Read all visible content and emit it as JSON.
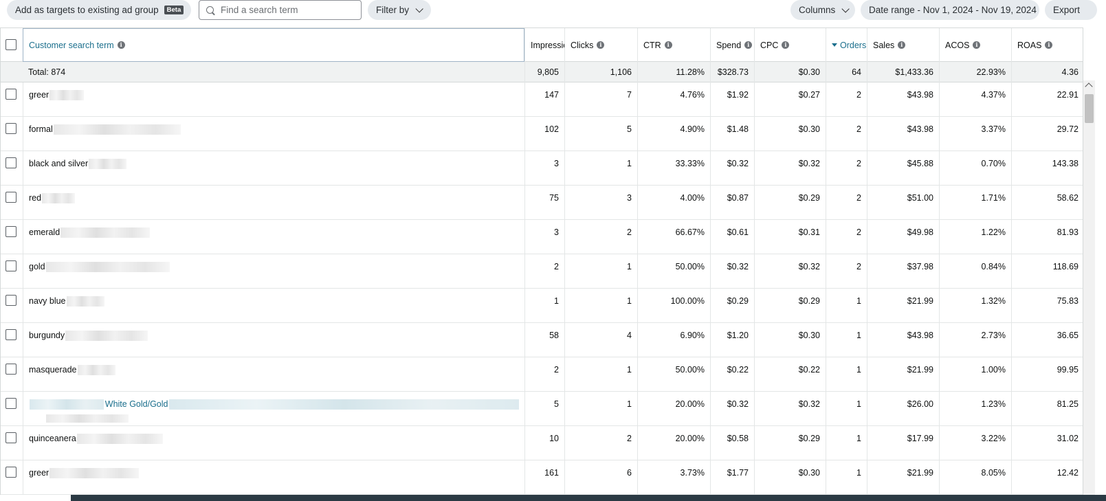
{
  "toolbar": {
    "add_targets_label": "Add as targets to existing ad group",
    "beta_badge": "Beta",
    "search_placeholder": "Find a search term",
    "filter_label": "Filter by",
    "columns_label": "Columns",
    "date_range_label": "Date range - Nov 1, 2024 - Nov 19, 2024",
    "export_label": "Export"
  },
  "columns": {
    "term": "Customer search term",
    "impressions": "Impressic",
    "clicks": "Clicks",
    "ctr": "CTR",
    "spend": "Spend",
    "cpc": "CPC",
    "orders": "Orders",
    "sales": "Sales",
    "acos": "ACOS",
    "roas": "ROAS"
  },
  "totals": {
    "label": "Total: 874",
    "impressions": "9,805",
    "clicks": "1,106",
    "ctr": "11.28%",
    "spend": "$328.73",
    "cpc": "$0.30",
    "orders": "64",
    "sales": "$1,433.36",
    "acos": "22.93%",
    "roas": "4.36"
  },
  "rows": [
    {
      "term": "greer",
      "impressions": "147",
      "clicks": "7",
      "ctr": "4.76%",
      "spend": "$1.92",
      "cpc": "$0.27",
      "orders": "2",
      "sales": "$43.98",
      "acos": "4.37%",
      "roas": "22.91"
    },
    {
      "term": "formal",
      "impressions": "102",
      "clicks": "5",
      "ctr": "4.90%",
      "spend": "$1.48",
      "cpc": "$0.30",
      "orders": "2",
      "sales": "$43.98",
      "acos": "3.37%",
      "roas": "29.72"
    },
    {
      "term": "black and silver",
      "impressions": "3",
      "clicks": "1",
      "ctr": "33.33%",
      "spend": "$0.32",
      "cpc": "$0.32",
      "orders": "2",
      "sales": "$45.88",
      "acos": "0.70%",
      "roas": "143.38"
    },
    {
      "term": "red",
      "impressions": "75",
      "clicks": "3",
      "ctr": "4.00%",
      "spend": "$0.87",
      "cpc": "$0.29",
      "orders": "2",
      "sales": "$51.00",
      "acos": "1.71%",
      "roas": "58.62"
    },
    {
      "term": "emerald",
      "impressions": "3",
      "clicks": "2",
      "ctr": "66.67%",
      "spend": "$0.61",
      "cpc": "$0.31",
      "orders": "2",
      "sales": "$49.98",
      "acos": "1.22%",
      "roas": "81.93"
    },
    {
      "term": "gold",
      "impressions": "2",
      "clicks": "1",
      "ctr": "50.00%",
      "spend": "$0.32",
      "cpc": "$0.32",
      "orders": "2",
      "sales": "$37.98",
      "acos": "0.84%",
      "roas": "118.69"
    },
    {
      "term": "navy blue",
      "impressions": "1",
      "clicks": "1",
      "ctr": "100.00%",
      "spend": "$0.29",
      "cpc": "$0.29",
      "orders": "1",
      "sales": "$21.99",
      "acos": "1.32%",
      "roas": "75.83"
    },
    {
      "term": "burgundy",
      "impressions": "58",
      "clicks": "4",
      "ctr": "6.90%",
      "spend": "$1.20",
      "cpc": "$0.30",
      "orders": "1",
      "sales": "$43.98",
      "acos": "2.73%",
      "roas": "36.65"
    },
    {
      "term": "masquerade",
      "impressions": "2",
      "clicks": "1",
      "ctr": "50.00%",
      "spend": "$0.22",
      "cpc": "$0.22",
      "orders": "1",
      "sales": "$21.99",
      "acos": "1.00%",
      "roas": "99.95"
    },
    {
      "term": "White Gold/Gold",
      "impressions": "5",
      "clicks": "1",
      "ctr": "20.00%",
      "spend": "$0.32",
      "cpc": "$0.32",
      "orders": "1",
      "sales": "$26.00",
      "acos": "1.23%",
      "roas": "81.25"
    },
    {
      "term": "quinceanera",
      "impressions": "10",
      "clicks": "2",
      "ctr": "20.00%",
      "spend": "$0.58",
      "cpc": "$0.29",
      "orders": "1",
      "sales": "$17.99",
      "acos": "3.22%",
      "roas": "31.02"
    },
    {
      "term": "greer",
      "impressions": "161",
      "clicks": "6",
      "ctr": "3.73%",
      "spend": "$1.77",
      "cpc": "$0.30",
      "orders": "1",
      "sales": "$21.99",
      "acos": "8.05%",
      "roas": "12.42"
    }
  ]
}
